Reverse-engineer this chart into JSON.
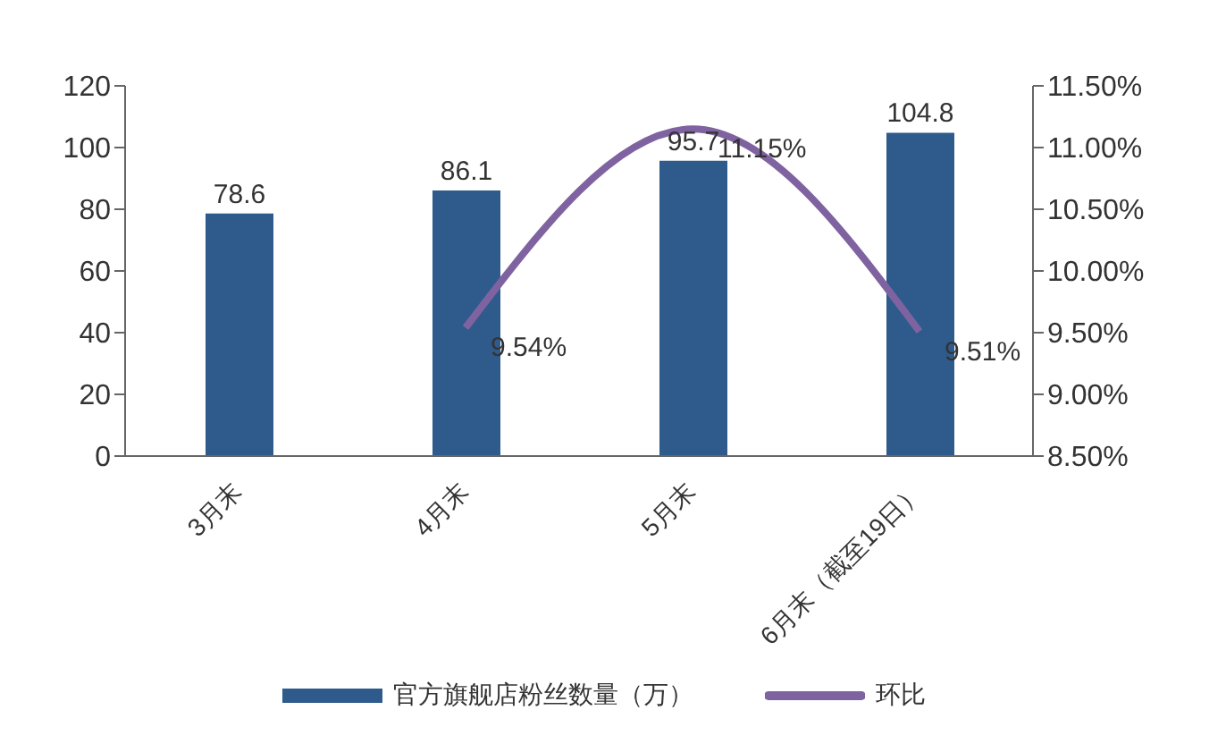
{
  "chart_data": {
    "type": "bar",
    "categories": [
      "3月末",
      "4月末",
      "5月末",
      "6月末（截至19日）"
    ],
    "series": [
      {
        "name": "官方旗舰店粉丝数量（万）",
        "color": "#2f5b8c",
        "values": [
          78.6,
          86.1,
          95.7,
          104.8
        ],
        "value_labels": [
          "78.6",
          "86.1",
          "95.7",
          "104.8"
        ]
      },
      {
        "name": "环比",
        "type": "line",
        "axis": "y2",
        "color": "#7f63a1",
        "values": [
          null,
          9.54,
          11.15,
          9.51
        ],
        "value_labels": [
          null,
          "9.54%",
          "11.15%",
          "9.51%"
        ]
      }
    ],
    "ylim": [
      0,
      120
    ],
    "yticks": [
      0,
      20,
      40,
      60,
      80,
      100,
      120
    ],
    "y2lim": [
      8.5,
      11.5
    ],
    "y2ticks": [
      {
        "value": 8.5,
        "label": "8.50%"
      },
      {
        "value": 9,
        "label": "9.00%"
      },
      {
        "value": 9.5,
        "label": "9.50%"
      },
      {
        "value": 10,
        "label": "10.00%"
      },
      {
        "value": 10.5,
        "label": "10.50%"
      },
      {
        "value": 11,
        "label": "11.00%"
      },
      {
        "value": 11.5,
        "label": "11.50%"
      }
    ],
    "grid": false,
    "legend": "bottom",
    "marker": "none"
  }
}
